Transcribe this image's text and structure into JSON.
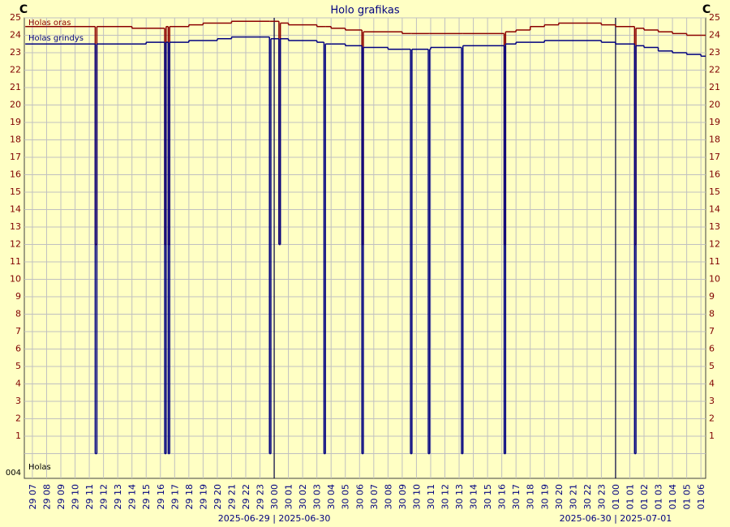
{
  "chart_data": {
    "type": "step-line",
    "title": "Holo grafikas",
    "ylabel": "C",
    "y2label": "C",
    "ylim": [
      0,
      25
    ],
    "yticks": [
      1,
      2,
      3,
      4,
      5,
      6,
      7,
      8,
      9,
      10,
      11,
      12,
      13,
      14,
      15,
      16,
      17,
      18,
      19,
      20,
      21,
      22,
      23,
      24,
      25
    ],
    "y2lim": [
      0,
      25
    ],
    "y2ticks": [
      1,
      2,
      3,
      4,
      5,
      6,
      7,
      8,
      9,
      10,
      11,
      12,
      13,
      14,
      15,
      16,
      17,
      18,
      19,
      20,
      21,
      22,
      23,
      24,
      25
    ],
    "grid": true,
    "xlim": [
      "2025-06-29 06:26",
      "2025-07-01 06:20"
    ],
    "xticks": [
      {
        "value": "2025-06-29 07:00",
        "label": "29 07"
      },
      {
        "value": "2025-06-29 08:00",
        "label": "29 08"
      },
      {
        "value": "2025-06-29 09:00",
        "label": "29 09"
      },
      {
        "value": "2025-06-29 10:00",
        "label": "29 10"
      },
      {
        "value": "2025-06-29 11:00",
        "label": "29 11"
      },
      {
        "value": "2025-06-29 12:00",
        "label": "29 12"
      },
      {
        "value": "2025-06-29 13:00",
        "label": "29 13"
      },
      {
        "value": "2025-06-29 14:00",
        "label": "29 14"
      },
      {
        "value": "2025-06-29 15:00",
        "label": "29 15"
      },
      {
        "value": "2025-06-29 16:00",
        "label": "29 16"
      },
      {
        "value": "2025-06-29 17:00",
        "label": "29 17"
      },
      {
        "value": "2025-06-29 18:00",
        "label": "29 18"
      },
      {
        "value": "2025-06-29 19:00",
        "label": "29 19"
      },
      {
        "value": "2025-06-29 20:00",
        "label": "29 20"
      },
      {
        "value": "2025-06-29 21:00",
        "label": "29 21"
      },
      {
        "value": "2025-06-29 22:00",
        "label": "29 22"
      },
      {
        "value": "2025-06-29 23:00",
        "label": "29 23"
      },
      {
        "value": "2025-06-30 00:00",
        "label": "30 00"
      },
      {
        "value": "2025-06-30 01:00",
        "label": "30 01"
      },
      {
        "value": "2025-06-30 02:00",
        "label": "30 02"
      },
      {
        "value": "2025-06-30 03:00",
        "label": "30 03"
      },
      {
        "value": "2025-06-30 04:00",
        "label": "30 04"
      },
      {
        "value": "2025-06-30 05:00",
        "label": "30 05"
      },
      {
        "value": "2025-06-30 06:00",
        "label": "30 06"
      },
      {
        "value": "2025-06-30 07:00",
        "label": "30 07"
      },
      {
        "value": "2025-06-30 08:00",
        "label": "30 08"
      },
      {
        "value": "2025-06-30 09:00",
        "label": "30 09"
      },
      {
        "value": "2025-06-30 10:00",
        "label": "30 10"
      },
      {
        "value": "2025-06-30 11:00",
        "label": "30 11"
      },
      {
        "value": "2025-06-30 12:00",
        "label": "30 12"
      },
      {
        "value": "2025-06-30 13:00",
        "label": "30 13"
      },
      {
        "value": "2025-06-30 14:00",
        "label": "30 14"
      },
      {
        "value": "2025-06-30 15:00",
        "label": "30 15"
      },
      {
        "value": "2025-06-30 16:00",
        "label": "30 16"
      },
      {
        "value": "2025-06-30 17:00",
        "label": "30 17"
      },
      {
        "value": "2025-06-30 18:00",
        "label": "30 18"
      },
      {
        "value": "2025-06-30 19:00",
        "label": "30 19"
      },
      {
        "value": "2025-06-30 20:00",
        "label": "30 20"
      },
      {
        "value": "2025-06-30 21:00",
        "label": "30 21"
      },
      {
        "value": "2025-06-30 22:00",
        "label": "30 22"
      },
      {
        "value": "2025-06-30 23:00",
        "label": "30 23"
      },
      {
        "value": "2025-07-01 00:00",
        "label": "01 00"
      },
      {
        "value": "2025-07-01 01:00",
        "label": "01 01"
      },
      {
        "value": "2025-07-01 02:00",
        "label": "01 02"
      },
      {
        "value": "2025-07-01 03:00",
        "label": "01 03"
      },
      {
        "value": "2025-07-01 04:00",
        "label": "01 04"
      },
      {
        "value": "2025-07-01 05:00",
        "label": "01 05"
      },
      {
        "value": "2025-07-01 06:00",
        "label": "01 06"
      }
    ],
    "day_labels": [
      {
        "value": "2025-06-30 00:00",
        "label": "2025-06-29 | 2025-06-30"
      },
      {
        "value": "2025-07-01 00:00",
        "label": "2025-06-30 | 2025-07-01"
      }
    ],
    "lower_track": {
      "name": "Holas",
      "tick_label": "004"
    },
    "x": [
      "2025-06-29 06:30",
      "2025-06-29 11:25",
      "2025-06-29 11:32",
      "2025-06-29 14:00",
      "2025-06-29 15:00",
      "2025-06-29 16:18",
      "2025-06-29 16:24",
      "2025-06-29 16:33",
      "2025-06-29 16:39",
      "2025-06-29 18:00",
      "2025-06-29 19:00",
      "2025-06-29 20:00",
      "2025-06-29 21:00",
      "2025-06-29 23:40",
      "2025-06-29 23:46",
      "2025-06-30 00:20",
      "2025-06-30 00:26",
      "2025-06-30 01:00",
      "2025-06-30 03:00",
      "2025-06-30 03:30",
      "2025-06-30 03:36",
      "2025-06-30 04:00",
      "2025-06-30 05:00",
      "2025-06-30 06:10",
      "2025-06-30 06:16",
      "2025-06-30 08:00",
      "2025-06-30 09:00",
      "2025-06-30 09:35",
      "2025-06-30 09:41",
      "2025-06-30 10:50",
      "2025-06-30 10:56",
      "2025-06-30 11:00",
      "2025-06-30 13:10",
      "2025-06-30 13:16",
      "2025-06-30 15:00",
      "2025-06-30 16:10",
      "2025-06-30 16:16",
      "2025-06-30 17:00",
      "2025-06-30 18:00",
      "2025-06-30 19:00",
      "2025-06-30 20:00",
      "2025-06-30 23:00",
      "2025-07-01 00:00",
      "2025-07-01 01:20",
      "2025-07-01 01:26",
      "2025-07-01 02:00",
      "2025-07-01 03:00",
      "2025-07-01 04:00",
      "2025-07-01 05:00",
      "2025-07-01 06:00"
    ],
    "series": [
      {
        "name": "Holas oras",
        "color": "#8b0000",
        "values": [
          24.5,
          12,
          24.5,
          24.4,
          24.4,
          12,
          24.5,
          12,
          24.5,
          24.6,
          24.7,
          24.7,
          24.8,
          24.8,
          24.8,
          12,
          24.7,
          24.6,
          24.5,
          24.5,
          24.5,
          24.4,
          24.3,
          12,
          24.2,
          24.2,
          24.1,
          24.1,
          24.1,
          24.1,
          24.1,
          24.1,
          24.1,
          24.1,
          24.1,
          12,
          24.2,
          24.3,
          24.5,
          24.6,
          24.7,
          24.6,
          24.5,
          12,
          24.4,
          24.3,
          24.2,
          24.1,
          24.0,
          24.0
        ]
      },
      {
        "name": "Holas grindys",
        "color": "#000080",
        "values": [
          23.5,
          0,
          23.5,
          23.5,
          23.6,
          0,
          23.6,
          0,
          23.6,
          23.7,
          23.7,
          23.8,
          23.9,
          0,
          23.8,
          12,
          23.8,
          23.7,
          23.6,
          0,
          23.5,
          23.5,
          23.4,
          0,
          23.3,
          23.2,
          23.2,
          0,
          23.2,
          0,
          23.2,
          23.3,
          0,
          23.4,
          23.4,
          0,
          23.5,
          23.6,
          23.6,
          23.7,
          23.7,
          23.6,
          23.5,
          0,
          23.4,
          23.3,
          23.1,
          23.0,
          22.9,
          22.8
        ]
      }
    ]
  }
}
